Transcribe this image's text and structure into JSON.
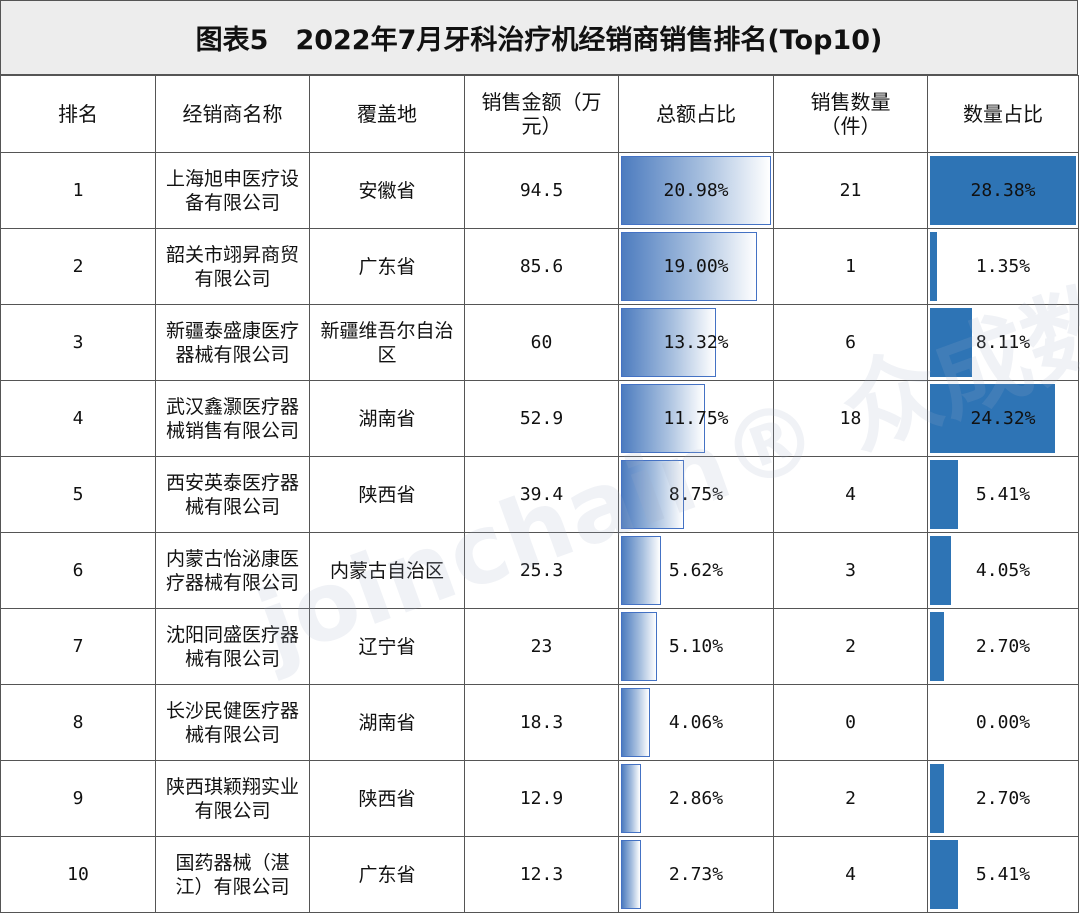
{
  "title": "图表5　2022年7月牙科治疗机经销商销售排名(Top10)",
  "headers": [
    "排名",
    "经销商名称",
    "覆盖地",
    "销售金额（万元）",
    "总额占比",
    "销售数量（件）",
    "数量占比"
  ],
  "rows": [
    {
      "rank": "1",
      "name": "上海旭申医疗设备有限公司",
      "region": "安徽省",
      "amount": "94.5",
      "amount_share": "20.98%",
      "quantity": "21",
      "quantity_share": "28.38%"
    },
    {
      "rank": "2",
      "name": "韶关市翊昇商贸有限公司",
      "region": "广东省",
      "amount": "85.6",
      "amount_share": "19.00%",
      "quantity": "1",
      "quantity_share": "1.35%"
    },
    {
      "rank": "3",
      "name": "新疆泰盛康医疗器械有限公司",
      "region": "新疆维吾尔自治区",
      "amount": "60",
      "amount_share": "13.32%",
      "quantity": "6",
      "quantity_share": "8.11%"
    },
    {
      "rank": "4",
      "name": "武汉鑫灏医疗器械销售有限公司",
      "region": "湖南省",
      "amount": "52.9",
      "amount_share": "11.75%",
      "quantity": "18",
      "quantity_share": "24.32%"
    },
    {
      "rank": "5",
      "name": "西安英泰医疗器械有限公司",
      "region": "陕西省",
      "amount": "39.4",
      "amount_share": "8.75%",
      "quantity": "4",
      "quantity_share": "5.41%"
    },
    {
      "rank": "6",
      "name": "内蒙古怡泌康医疗器械有限公司",
      "region": "内蒙古自治区",
      "amount": "25.3",
      "amount_share": "5.62%",
      "quantity": "3",
      "quantity_share": "4.05%"
    },
    {
      "rank": "7",
      "name": "沈阳同盛医疗器械有限公司",
      "region": "辽宁省",
      "amount": "23",
      "amount_share": "5.10%",
      "quantity": "2",
      "quantity_share": "2.70%"
    },
    {
      "rank": "8",
      "name": "长沙民健医疗器械有限公司",
      "region": "湖南省",
      "amount": "18.3",
      "amount_share": "4.06%",
      "quantity": "0",
      "quantity_share": "0.00%"
    },
    {
      "rank": "9",
      "name": "陕西琪颖翔实业有限公司",
      "region": "陕西省",
      "amount": "12.9",
      "amount_share": "2.86%",
      "quantity": "2",
      "quantity_share": "2.70%"
    },
    {
      "rank": "10",
      "name": "国药器械（湛江）有限公司",
      "region": "广东省",
      "amount": "12.3",
      "amount_share": "2.73%",
      "quantity": "4",
      "quantity_share": "5.41%"
    }
  ],
  "bar_scale": {
    "amount_share_max": 20.98,
    "quantity_share_max": 28.38
  },
  "colors": {
    "amount_bar_start": "#4d7cbf",
    "amount_bar_end": "#ffffff",
    "quantity_bar": "#2e74b5",
    "title_bg": "#ededed",
    "grid": "#555555"
  },
  "watermark": "joinchain® 众成数科"
}
